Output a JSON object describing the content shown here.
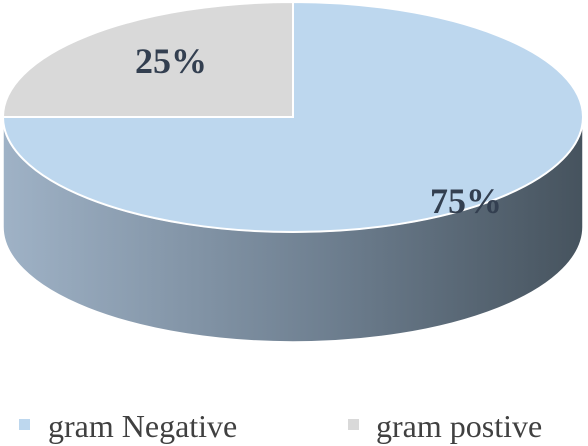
{
  "chart_data": {
    "type": "pie",
    "style": "3d",
    "title": "",
    "categories": [
      "gram Negative",
      "gram postive"
    ],
    "values": [
      75,
      25
    ],
    "data_labels": [
      "75%",
      "25%"
    ],
    "colors": [
      "#bdd7ee",
      "#d9d9d9"
    ],
    "side_color_light": "#9fb2c6",
    "side_color_dark": "#46535e",
    "legend": {
      "position": "bottom",
      "entries": [
        "gram Negative",
        "gram postive"
      ]
    }
  }
}
